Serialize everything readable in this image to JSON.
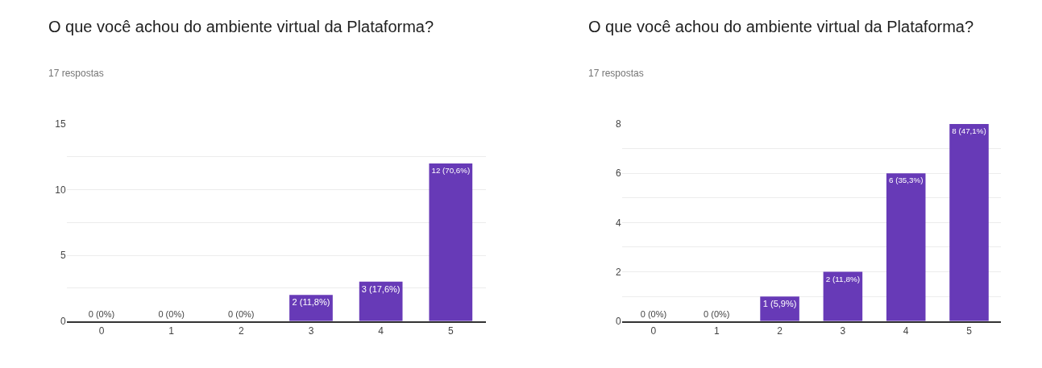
{
  "chart_data": [
    {
      "type": "bar",
      "title": "O que você achou do ambiente virtual da Plataforma?",
      "subtitle": "17 respostas",
      "categories": [
        "0",
        "1",
        "2",
        "3",
        "4",
        "5"
      ],
      "values": [
        0,
        0,
        0,
        2,
        3,
        12
      ],
      "color": "#673ab7",
      "value_labels": [
        "0 (0%)",
        "0 (0%)",
        "0 (0%)",
        "2 (11,8%)",
        "3 (17,6%)",
        "12 (70,6%)"
      ],
      "ylim": [
        0,
        15
      ],
      "yticks": [
        0,
        {
          "value": 2.5,
          "label": null
        },
        5,
        {
          "value": 7.5,
          "label": null
        },
        10,
        {
          "value": 12.5,
          "label": null
        },
        15
      ],
      "grid": "y"
    },
    {
      "type": "bar",
      "title": "O que você achou do ambiente virtual da Plataforma?",
      "subtitle": "17 respostas",
      "categories": [
        "0",
        "1",
        "2",
        "3",
        "4",
        "5"
      ],
      "values": [
        0,
        0,
        1,
        2,
        6,
        8
      ],
      "color": "#673ab7",
      "value_labels": [
        "0 (0%)",
        "0 (0%)",
        "1 (5,9%)",
        "2 (11,8%)",
        "6 (35,3%)",
        "8 (47,1%)"
      ],
      "ylim": [
        0,
        8
      ],
      "yticks": [
        0,
        {
          "value": 1,
          "label": null
        },
        2,
        {
          "value": 3,
          "label": null
        },
        4,
        {
          "value": 5,
          "label": null
        },
        6,
        {
          "value": 7,
          "label": null
        },
        8
      ],
      "grid": "y"
    }
  ]
}
